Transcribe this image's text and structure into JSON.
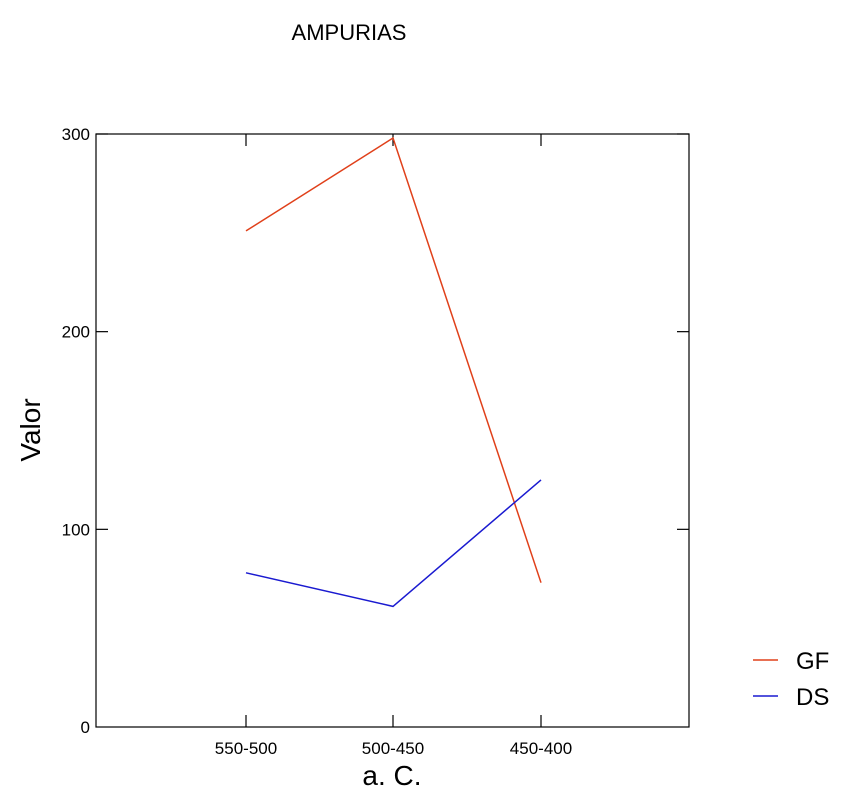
{
  "chart_data": {
    "type": "line",
    "title": "AMPURIAS",
    "xlabel": "a. C.",
    "ylabel": "Valor",
    "categories": [
      "550-500",
      "500-450",
      "450-400"
    ],
    "yticks": [
      "0",
      "100",
      "200",
      "300"
    ],
    "ylim": [
      0,
      300
    ],
    "grid": false,
    "legend_position": "right",
    "series": [
      {
        "name": "GF",
        "values": [
          251,
          298,
          73
        ],
        "color": "#e0401a"
      },
      {
        "name": "DS",
        "values": [
          78,
          61,
          125
        ],
        "color": "#1a1ad0"
      }
    ]
  }
}
